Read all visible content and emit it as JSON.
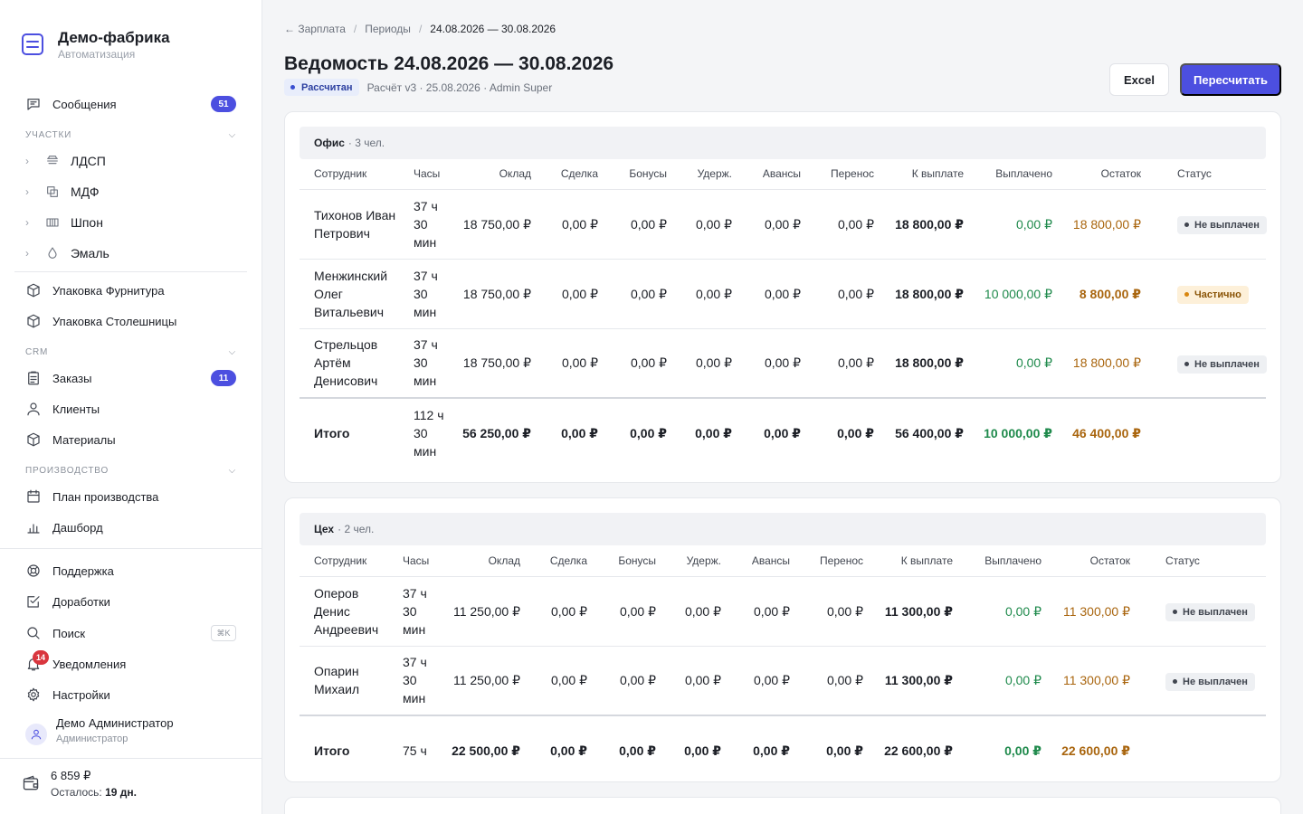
{
  "brand": {
    "title": "Демо-фабрика",
    "subtitle": "Автоматизация"
  },
  "sidebar": {
    "messages": {
      "label": "Сообщения",
      "badge": "51"
    },
    "sections": {
      "sites": "Участки",
      "crm": "CRM",
      "production": "Производство"
    },
    "sites": [
      {
        "label": "ЛДСП",
        "icon": "layers-icon"
      },
      {
        "label": "МДФ",
        "icon": "copy-icon"
      },
      {
        "label": "Шпон",
        "icon": "columns-icon"
      },
      {
        "label": "Эмаль",
        "icon": "droplet-icon"
      }
    ],
    "packaging": [
      {
        "label": "Упаковка Фурнитура",
        "icon": "box-icon"
      },
      {
        "label": "Упаковка Столешницы",
        "icon": "box-icon"
      }
    ],
    "crm": [
      {
        "label": "Заказы",
        "icon": "clipboard-icon",
        "badge": "11"
      },
      {
        "label": "Клиенты",
        "icon": "user-icon"
      },
      {
        "label": "Материалы",
        "icon": "box-icon"
      }
    ],
    "production": [
      {
        "label": "План производства",
        "icon": "calendar-icon"
      },
      {
        "label": "Дашборд",
        "icon": "bar-chart-icon"
      }
    ],
    "bottom": {
      "support": "Поддержка",
      "improvements": "Доработки",
      "search": "Поиск",
      "search_kbd": "⌘K",
      "notifications": "Уведомления",
      "notifications_badge": "14",
      "settings": "Настройки"
    },
    "user": {
      "name": "Демо Администратор",
      "role": "Администратор"
    },
    "wallet": {
      "amount": "6 859 ₽",
      "left_label": "Осталось:",
      "left_value": "19 дн."
    }
  },
  "breadcrumb": {
    "back": "← Зарплата",
    "periods": "Периоды",
    "current": "24.08.2026 — 30.08.2026"
  },
  "header": {
    "title": "Ведомость 24.08.2026 — 30.08.2026",
    "status": "Рассчитан",
    "meta": "Расчёт v3 · 25.08.2026 · Admin Super",
    "excel_label": "Excel",
    "recalc_label": "Пересчитать"
  },
  "columns": [
    "Сотрудник",
    "Часы",
    "Оклад",
    "Сделка",
    "Бонусы",
    "Удерж.",
    "Авансы",
    "Перенос",
    "К выплате",
    "Выплачено",
    "Остаток",
    "Статус"
  ],
  "groups": [
    {
      "name": "Офис",
      "count": "· 3 чел.",
      "rows": [
        {
          "name": "Тихонов Иван Петрович",
          "hours": "37 ч 30 мин",
          "salary": "18 750,00 ₽",
          "piece": "0,00 ₽",
          "bonus": "0,00 ₽",
          "hold": "0,00 ₽",
          "advance": "0,00 ₽",
          "transfer": "0,00 ₽",
          "payable": "18 800,00 ₽",
          "paid": "0,00 ₽",
          "rest": "18 800,00 ₽",
          "status": "Не выплачен",
          "status_kind": "none"
        },
        {
          "name": "Менжинский Олег Витальевич",
          "hours": "37 ч 30 мин",
          "salary": "18 750,00 ₽",
          "piece": "0,00 ₽",
          "bonus": "0,00 ₽",
          "hold": "0,00 ₽",
          "advance": "0,00 ₽",
          "transfer": "0,00 ₽",
          "payable": "18 800,00 ₽",
          "paid": "10 000,00 ₽",
          "rest": "8 800,00 ₽",
          "status": "Частично",
          "status_kind": "part"
        },
        {
          "name": "Стрельцов Артём Денисович",
          "hours": "37 ч 30 мин",
          "salary": "18 750,00 ₽",
          "piece": "0,00 ₽",
          "bonus": "0,00 ₽",
          "hold": "0,00 ₽",
          "advance": "0,00 ₽",
          "transfer": "0,00 ₽",
          "payable": "18 800,00 ₽",
          "paid": "0,00 ₽",
          "rest": "18 800,00 ₽",
          "status": "Не выплачен",
          "status_kind": "none"
        }
      ],
      "total": {
        "label": "Итого",
        "hours": "112 ч 30 мин",
        "salary": "56 250,00 ₽",
        "piece": "0,00 ₽",
        "bonus": "0,00 ₽",
        "hold": "0,00 ₽",
        "advance": "0,00 ₽",
        "transfer": "0,00 ₽",
        "payable": "56 400,00 ₽",
        "paid": "10 000,00 ₽",
        "rest": "46 400,00 ₽"
      }
    },
    {
      "name": "Цех",
      "count": "· 2 чел.",
      "rows": [
        {
          "name": "Оперов Денис Андреевич",
          "hours": "37 ч 30 мин",
          "salary": "11 250,00 ₽",
          "piece": "0,00 ₽",
          "bonus": "0,00 ₽",
          "hold": "0,00 ₽",
          "advance": "0,00 ₽",
          "transfer": "0,00 ₽",
          "payable": "11 300,00 ₽",
          "paid": "0,00 ₽",
          "rest": "11 300,00 ₽",
          "status": "Не выплачен",
          "status_kind": "none"
        },
        {
          "name": "Опарин Михаил",
          "hours": "37 ч 30 мин",
          "salary": "11 250,00 ₽",
          "piece": "0,00 ₽",
          "bonus": "0,00 ₽",
          "hold": "0,00 ₽",
          "advance": "0,00 ₽",
          "transfer": "0,00 ₽",
          "payable": "11 300,00 ₽",
          "paid": "0,00 ₽",
          "rest": "11 300,00 ₽",
          "status": "Не выплачен",
          "status_kind": "none"
        }
      ],
      "total": {
        "label": "Итого",
        "hours": "75 ч",
        "salary": "22 500,00 ₽",
        "piece": "0,00 ₽",
        "bonus": "0,00 ₽",
        "hold": "0,00 ₽",
        "advance": "0,00 ₽",
        "transfer": "0,00 ₽",
        "payable": "22 600,00 ₽",
        "paid": "0,00 ₽",
        "rest": "22 600,00 ₽"
      }
    }
  ],
  "colors": {
    "accent": "#4c4fe0",
    "paid": "#1f8a4c",
    "rest": "#a9650e",
    "danger": "#d9363e"
  }
}
